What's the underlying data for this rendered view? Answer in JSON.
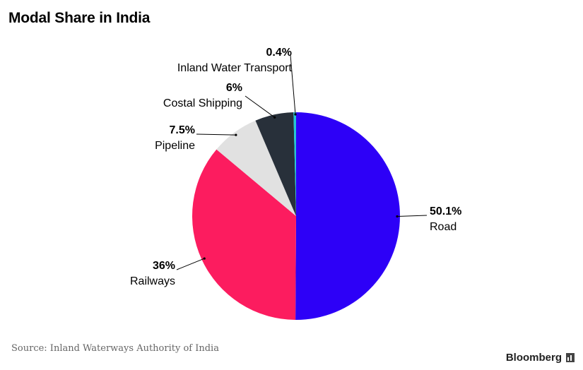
{
  "chart_data": {
    "type": "pie",
    "title": "Modal Share in India",
    "slices": [
      {
        "name": "Road",
        "value": 50.1,
        "label": "50.1%",
        "color": "#2d00f7"
      },
      {
        "name": "Railways",
        "value": 36,
        "label": "36%",
        "color": "#fc1c5f"
      },
      {
        "name": "Pipeline",
        "value": 7.5,
        "label": "7.5%",
        "color": "#e1e1e1"
      },
      {
        "name": "Costal Shipping",
        "value": 6,
        "label": "6%",
        "color": "#28303a"
      },
      {
        "name": "Inland Water Transport",
        "value": 0.4,
        "label": "0.4%",
        "color": "#23c5d5"
      }
    ]
  },
  "source": "Source: Inland Waterways Authority of India",
  "brand": "Bloomberg"
}
